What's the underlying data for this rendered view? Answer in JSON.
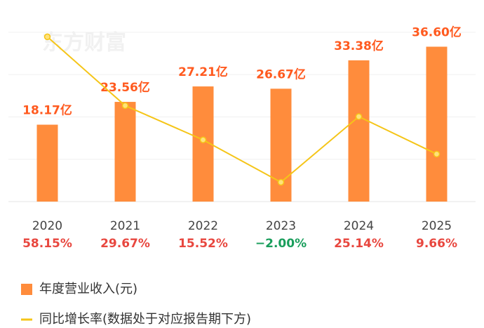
{
  "chart_data": {
    "type": "bar",
    "watermark": "东方财富",
    "categories": [
      "2020",
      "2021",
      "2022",
      "2023",
      "2024",
      "2025"
    ],
    "series": [
      {
        "name": "年度营业收入(元)",
        "type": "bar",
        "color": "#ff8c3c",
        "values": [
          18.17,
          23.56,
          27.21,
          26.67,
          33.38,
          36.6
        ],
        "value_labels": [
          "18.17亿",
          "23.56亿",
          "27.21亿",
          "26.67亿",
          "33.38亿",
          "36.60亿"
        ]
      },
      {
        "name": "同比增长率(数据处于对应报告期下方)",
        "type": "line",
        "axis": "y2",
        "color": "#f5c518",
        "values": [
          58.15,
          29.67,
          15.52,
          -2.0,
          25.14,
          9.66
        ],
        "value_labels": [
          "58.15%",
          "29.67%",
          "15.52%",
          "−2.00%",
          "25.14%",
          "9.66%"
        ]
      }
    ],
    "ylim": [
      0,
      40
    ],
    "y2lim": [
      -10,
      60
    ],
    "grid": true
  }
}
